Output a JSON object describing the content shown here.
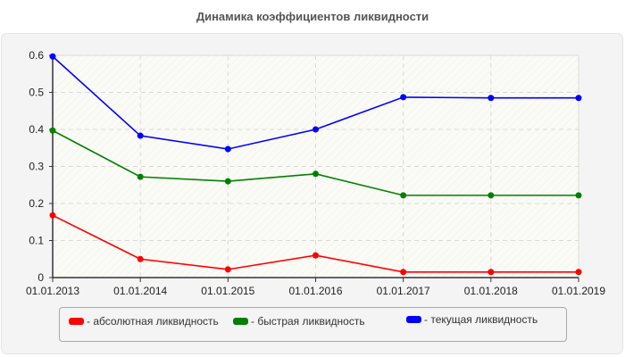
{
  "title": "Динамика коэффициентов ликвидности",
  "chart_data": {
    "type": "line",
    "title": "Динамика коэффициентов ликвидности",
    "xlabel": "",
    "ylabel": "",
    "x": [
      "01.01.2013",
      "01.01.2014",
      "01.01.2015",
      "01.01.2016",
      "01.01.2017",
      "01.01.2018",
      "01.01.2019"
    ],
    "ylim": [
      0,
      0.6
    ],
    "yticks": [
      "0",
      "0.1",
      "0.2",
      "0.3",
      "0.4",
      "0.5",
      "0.6"
    ],
    "grid": true,
    "legend_position": "bottom",
    "series": [
      {
        "name": "- абсолютная ликвидность",
        "color": "#ff0000",
        "values": [
          0.168,
          0.05,
          0.022,
          0.06,
          0.015,
          0.015,
          0.015
        ]
      },
      {
        "name": "- быстрая ликвидность",
        "color": "#008000",
        "values": [
          0.397,
          0.272,
          0.26,
          0.28,
          0.222,
          0.222,
          0.222
        ]
      },
      {
        "name": "- текущая ликвидность",
        "color": "#0000ff",
        "values": [
          0.597,
          0.383,
          0.347,
          0.4,
          0.487,
          0.485,
          0.485
        ]
      }
    ]
  },
  "legend": {
    "items": [
      {
        "label": "- абсолютная ликвидность",
        "color": "#ff0000"
      },
      {
        "label": "- быстрая ликвидность",
        "color": "#008000"
      },
      {
        "label": "- текущая ликвидность",
        "color": "#0000ff"
      }
    ]
  }
}
